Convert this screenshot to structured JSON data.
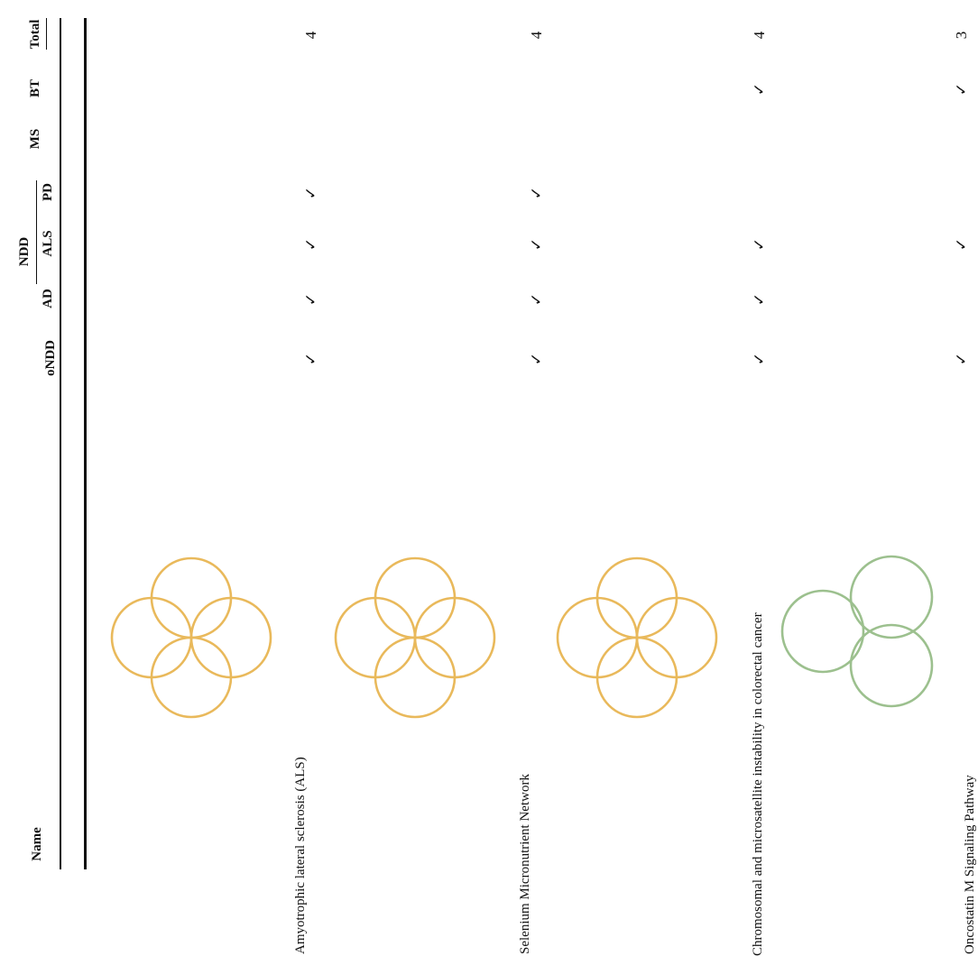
{
  "table": {
    "headers": {
      "name": "Name",
      "ndd_group": "NDD",
      "ondd": "oNDD",
      "ad": "AD",
      "als": "ALS",
      "pd": "PD",
      "ms": "MS",
      "bt": "BT",
      "total": "Total"
    },
    "check_mark": "✓",
    "rows": [
      {
        "name": "Amyotrophic lateral sclerosis (ALS)",
        "icon": "four-circles-icon",
        "icon_color": "#e9b95b",
        "marks": {
          "ondd": "✓",
          "ad": "✓",
          "als": "✓",
          "pd": "✓",
          "ms": "",
          "bt": ""
        },
        "total": "4"
      },
      {
        "name": "Selenium Micronutrient Network",
        "icon": "four-circles-icon",
        "icon_color": "#e9b95b",
        "marks": {
          "ondd": "✓",
          "ad": "✓",
          "als": "✓",
          "pd": "✓",
          "ms": "",
          "bt": ""
        },
        "total": "4"
      },
      {
        "name": "Chromosomal and microsatellite instability in colorectal cancer",
        "icon": "four-circles-icon",
        "icon_color": "#e9b95b",
        "marks": {
          "ondd": "✓",
          "ad": "✓",
          "als": "✓",
          "pd": "",
          "ms": "",
          "bt": "✓"
        },
        "total": "4"
      },
      {
        "name": "Oncostatin M Signaling Pathway",
        "icon": "three-circles-icon",
        "icon_color": "#9cc08e",
        "marks": {
          "ondd": "✓",
          "ad": "",
          "als": "✓",
          "pd": "",
          "ms": "",
          "bt": "✓"
        },
        "total": "3"
      }
    ]
  }
}
